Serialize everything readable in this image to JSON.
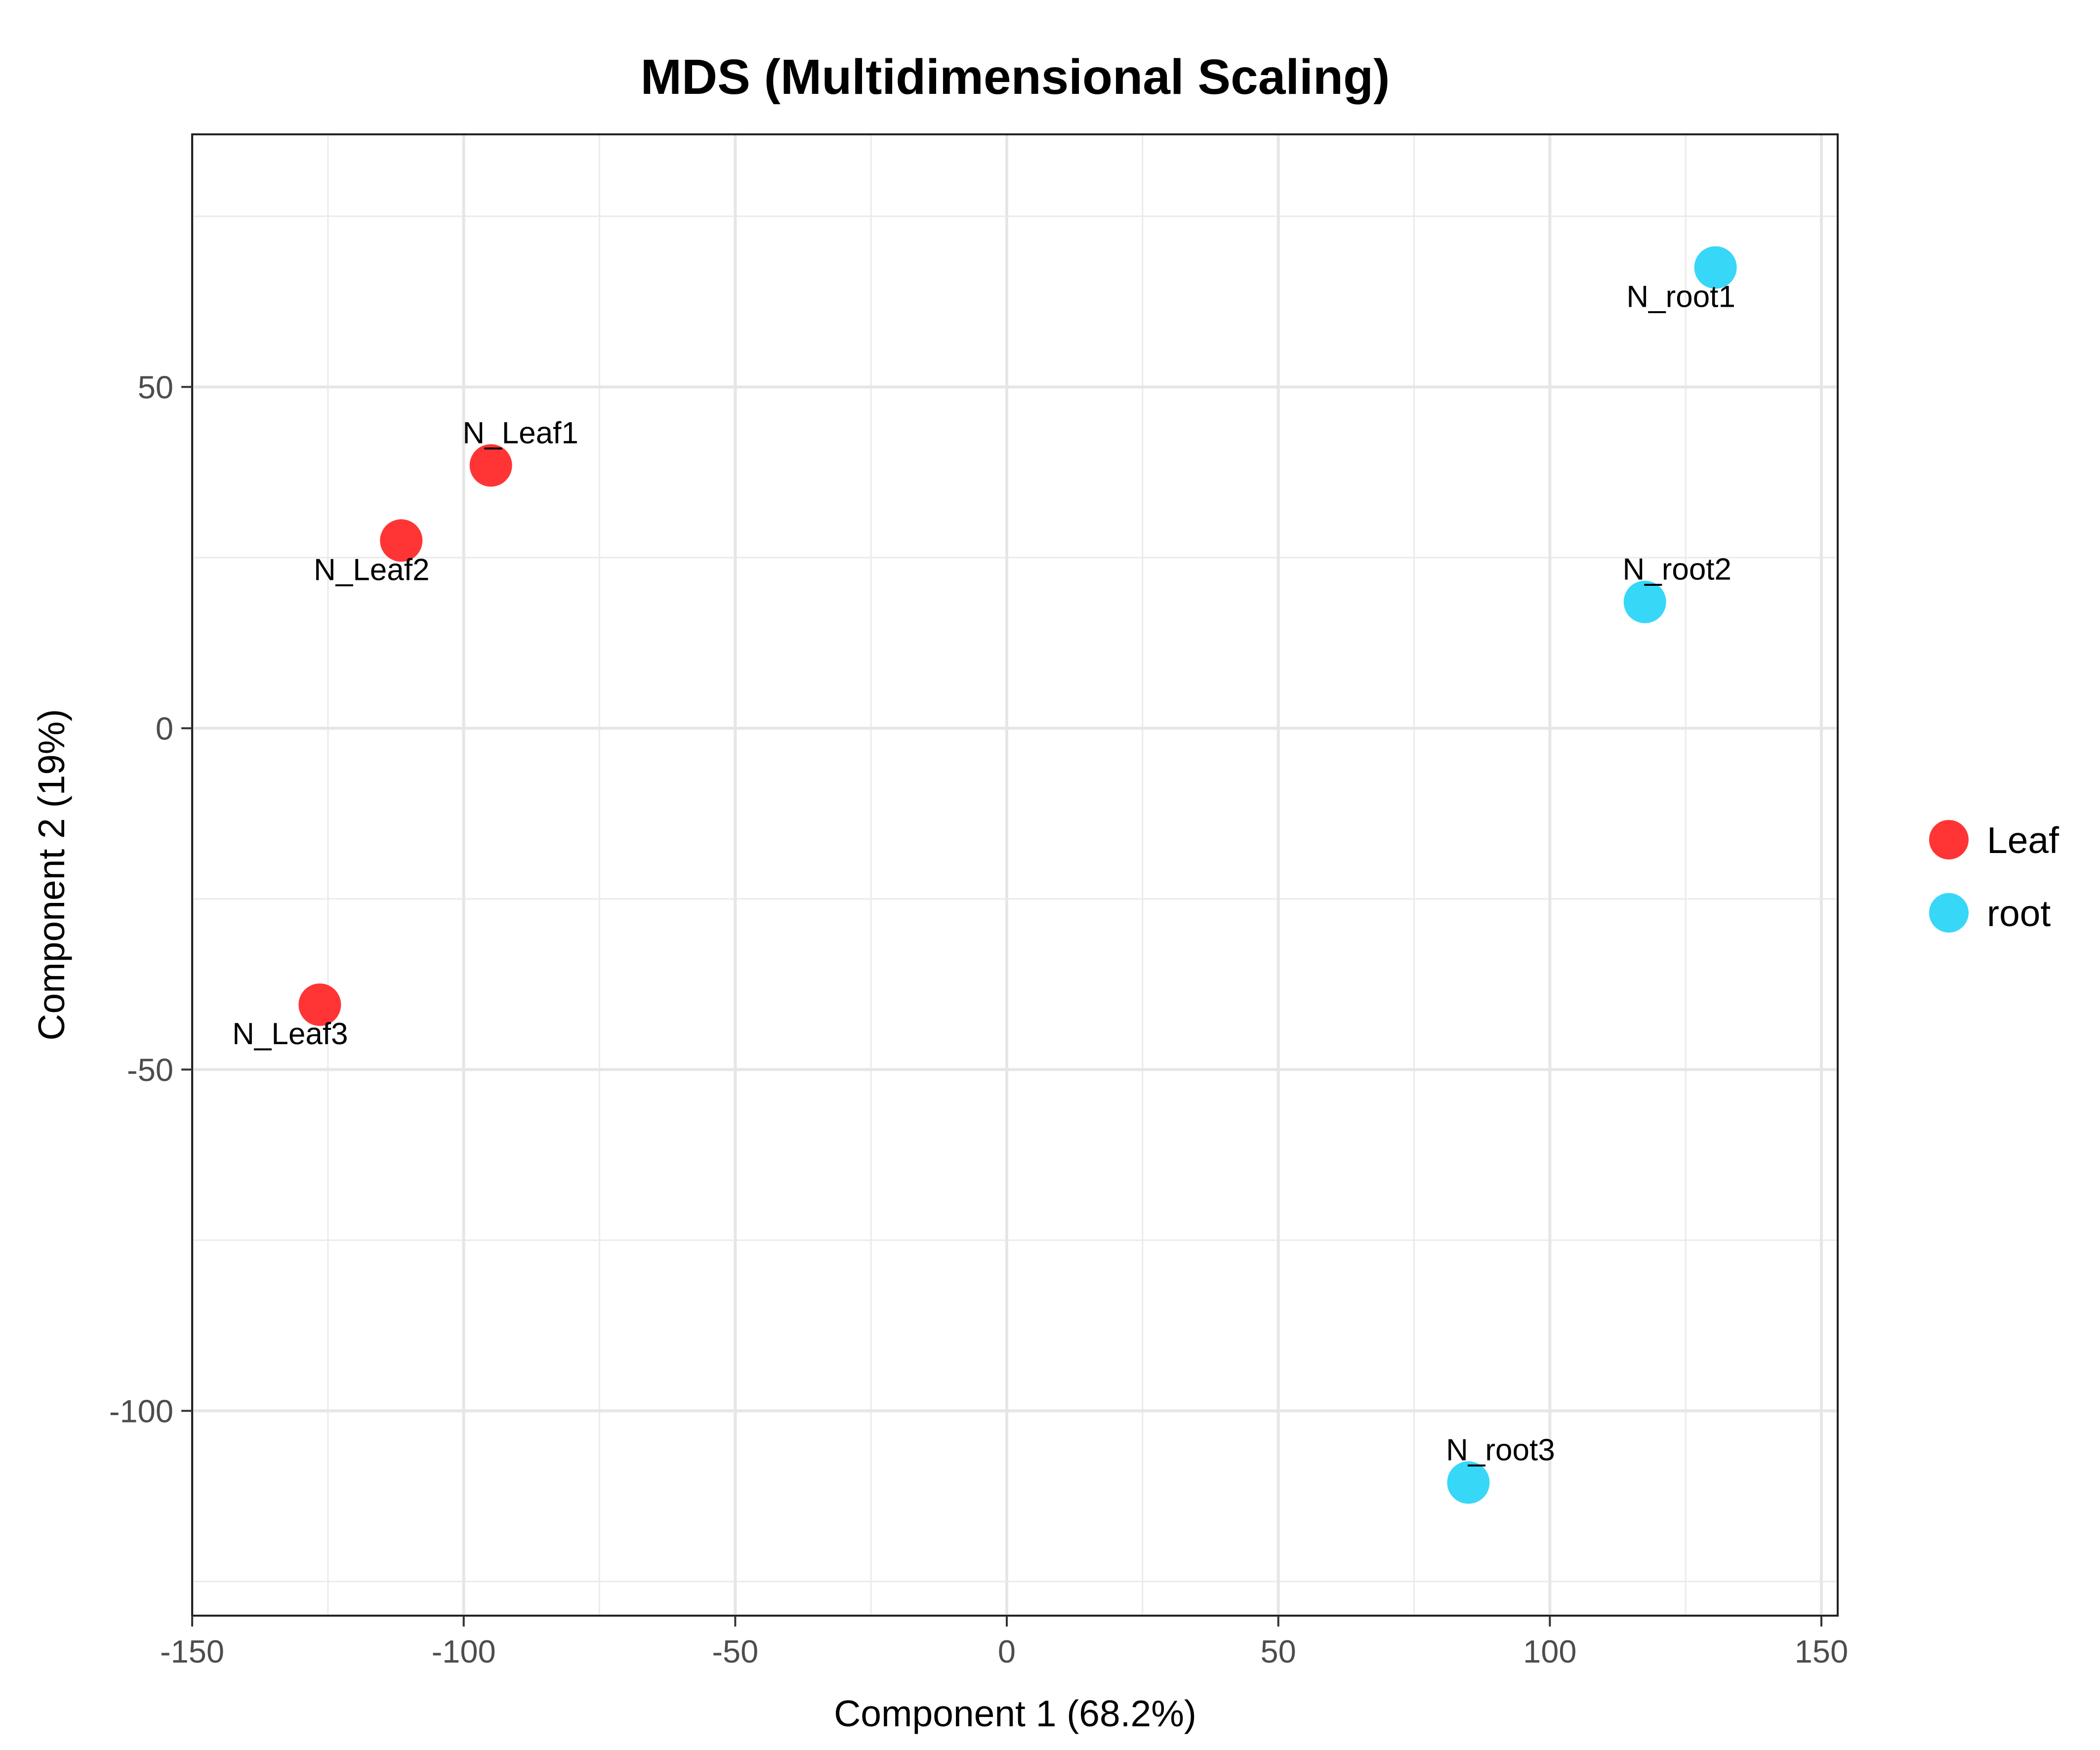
{
  "chart_data": {
    "type": "scatter",
    "title": "MDS (Multidimensional Scaling)",
    "xlabel": "Component 1 (68.2%)",
    "ylabel": "Component 2 (19%)",
    "xlim": [
      -150,
      153
    ],
    "ylim": [
      -130,
      87
    ],
    "xticks": [
      -150,
      -100,
      -50,
      0,
      50,
      100,
      150
    ],
    "xtick_labels": [
      "-150",
      "-100",
      "-50",
      "0",
      "50",
      "100",
      "150"
    ],
    "yticks": [
      -100,
      -50,
      0,
      50
    ],
    "ytick_labels": [
      "-100",
      "-50",
      "0",
      "50"
    ],
    "grid": true,
    "legend_position": "right",
    "series": [
      {
        "name": "Leaf",
        "color": "#ff2a2a",
        "points": [
          {
            "label": "N_Leaf1",
            "x": -95,
            "y": 38.5
          },
          {
            "label": "N_Leaf2",
            "x": -111.5,
            "y": 27.5
          },
          {
            "label": "N_Leaf3",
            "x": -126.5,
            "y": -40.5
          }
        ]
      },
      {
        "name": "root",
        "color": "#2cd5f8",
        "points": [
          {
            "label": "N_root1",
            "x": 130.5,
            "y": 67.5
          },
          {
            "label": "N_root2",
            "x": 117.5,
            "y": 18.5
          },
          {
            "label": "N_root3",
            "x": 85,
            "y": -110.5
          }
        ]
      }
    ]
  }
}
